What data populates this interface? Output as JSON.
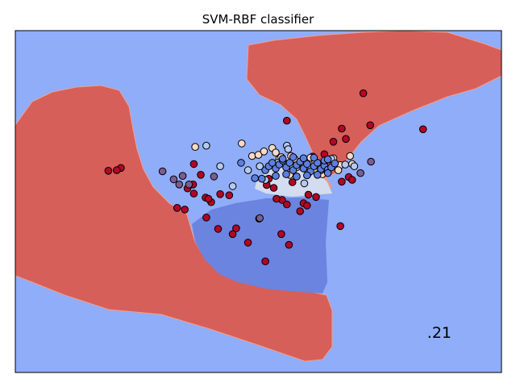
{
  "chart_data": {
    "type": "scatter",
    "title": "SVM-RBF classifier",
    "xlabel": "",
    "ylabel": "",
    "xticks": [],
    "yticks": [],
    "xlim": [
      -3.5,
      3.5
    ],
    "ylim": [
      -3.5,
      2.5
    ],
    "grid": false,
    "legend": "none",
    "annotation": ".21",
    "colors": {
      "dark_red": "#b40426",
      "red_region": "#d65f5a",
      "light_blue_region": "#8fadf8",
      "dark_blue_region": "#6b84e0",
      "pale_region": "#d4dcf0",
      "salmon_region": "#ec9a85",
      "pale_point": "#f7d9c8",
      "light_blue_point": "#b5c9f2",
      "blue_point": "#5e7fe0",
      "purple_point": "#7a5d92",
      "edge": "#000000"
    },
    "series": [
      {
        "class": "dark_red",
        "x": [
          1.51,
          1.61,
          2.37,
          0.41,
          1.08,
          1.2,
          1.26,
          0.5,
          -1.98,
          -2.04,
          -2.16,
          -0.93,
          -0.83,
          -0.94,
          -0.93,
          -0.76,
          -0.55,
          -0.68,
          -0.75,
          -0.37,
          0.1,
          -0.15,
          -0.32,
          0.01,
          0.41,
          0.65,
          -1.17,
          -1.06,
          -0.58,
          0.6,
          1.18,
          0.44,
          0.33,
          -1.02,
          -0.72,
          0.34,
          0.26,
          0.7,
          1.3,
          1.35,
          1.2,
          0.78,
          0.95,
          -0.42,
          0.12,
          0.22,
          0.49,
          0.72,
          0.83,
          0.15
        ],
        "y": [
          1.4,
          0.84,
          0.77,
          0.92,
          0.55,
          0.78,
          0.6,
          0.2,
          0.09,
          0.05,
          0.04,
          0.16,
          -0.03,
          -0.2,
          -0.36,
          -0.43,
          -0.37,
          -0.51,
          -0.78,
          -1.07,
          -1.55,
          -1.22,
          -0.97,
          -0.8,
          -0.55,
          -0.53,
          -0.61,
          -0.64,
          -0.98,
          -0.67,
          -0.93,
          -1.26,
          -1.07,
          -0.27,
          -0.45,
          -0.47,
          -0.45,
          -0.57,
          -0.07,
          -0.12,
          -0.15,
          0.29,
          0.33,
          -0.39,
          -0.21,
          -0.26,
          -0.16,
          -0.38,
          -0.42,
          -0.1
        ]
      },
      {
        "class": "pale_point",
        "x": [
          -0.91,
          -0.24,
          -0.09,
          0.0,
          0.08,
          0.2,
          0.25,
          0.3,
          0.33,
          0.47,
          0.52,
          0.6,
          0.65,
          0.75,
          0.82,
          0.88,
          0.95,
          1.02,
          1.08,
          1.18,
          1.32,
          1.35,
          1.15,
          0.45,
          0.55,
          0.72,
          0.92
        ],
        "y": [
          0.46,
          0.52,
          0.3,
          0.32,
          0.38,
          0.44,
          0.36,
          0.25,
          0.28,
          0.3,
          0.25,
          0.2,
          0.15,
          0.27,
          0.2,
          0.12,
          0.18,
          0.24,
          0.26,
          0.14,
          0.3,
          0.16,
          0.05,
          -0.03,
          -0.06,
          0.0,
          -0.02
        ]
      },
      {
        "class": "light_blue_point",
        "x": [
          -0.75,
          0.41,
          0.43,
          -0.37,
          -0.15,
          0.02,
          0.28,
          0.55,
          0.72,
          1.05,
          1.25,
          1.38,
          0.1,
          -0.55,
          0.66,
          0.9
        ],
        "y": [
          0.48,
          0.48,
          0.42,
          -0.23,
          0.05,
          0.12,
          0.18,
          0.1,
          0.02,
          0.25,
          0.15,
          0.12,
          -0.12,
          0.12,
          -0.18,
          0.05
        ]
      },
      {
        "class": "blue_point",
        "x": [
          0.1,
          0.15,
          0.2,
          0.25,
          0.3,
          0.35,
          0.4,
          0.45,
          0.5,
          0.55,
          0.6,
          0.65,
          0.7,
          0.75,
          0.8,
          0.85,
          0.9,
          0.95,
          1.0,
          1.05,
          1.1,
          0.25,
          0.4,
          0.55,
          0.7,
          0.85,
          1.0,
          0.35,
          0.5,
          0.65,
          0.8,
          0.95,
          1.0,
          -0.25,
          0.05,
          -0.05
        ],
        "y": [
          0.05,
          0.12,
          0.18,
          0.08,
          0.15,
          0.22,
          0.1,
          0.18,
          0.05,
          0.14,
          0.2,
          0.08,
          0.16,
          0.03,
          0.12,
          0.18,
          0.07,
          0.13,
          0.06,
          0.1,
          0.17,
          -0.05,
          -0.02,
          -0.06,
          -0.04,
          -0.03,
          0.0,
          0.25,
          0.28,
          0.26,
          0.27,
          0.22,
          0.24,
          0.18,
          -0.1,
          -0.09
        ]
      },
      {
        "class": "purple_point",
        "x": [
          -1.38,
          -1.22,
          -1.09,
          -0.64,
          -1.14,
          -1.0,
          1.47,
          1.62,
          0.02
        ],
        "y": [
          0.03,
          -0.11,
          -0.05,
          -0.06,
          -0.2,
          -0.2,
          0.0,
          0.2,
          -0.79
        ]
      }
    ]
  }
}
